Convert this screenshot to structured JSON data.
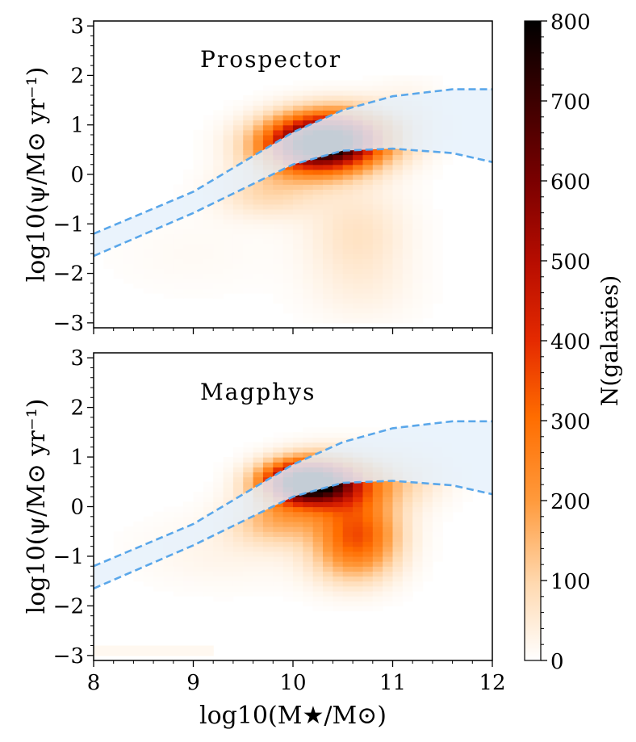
{
  "chart_data": {
    "type": "heatmap",
    "x_axis": {
      "label": "log10(M★/M⊙)",
      "range": [
        8,
        12
      ],
      "ticks": [
        8,
        9,
        10,
        11,
        12
      ],
      "tick_labels": [
        "8",
        "9",
        "10",
        "11",
        "12"
      ]
    },
    "y_axis": {
      "label": "log10(ψ/M⊙ yr⁻¹)",
      "range": [
        -3.1,
        3.1
      ],
      "ticks": [
        -3,
        -2,
        -1,
        0,
        1,
        2,
        3
      ],
      "tick_labels": [
        "−3",
        "−2",
        "−1",
        "0",
        "1",
        "2",
        "3"
      ]
    },
    "colorbar": {
      "label": "N(galaxies)",
      "range": [
        0,
        800
      ],
      "ticks": [
        0,
        100,
        200,
        300,
        400,
        500,
        600,
        700,
        800
      ],
      "tick_labels": [
        "0",
        "100",
        "200",
        "300",
        "400",
        "500",
        "600",
        "700",
        "800"
      ],
      "colormap": "gist_heat_r"
    },
    "panels": [
      {
        "title": "Prospector",
        "density_components": [
          {
            "x": 10.25,
            "y": 0.6,
            "sx": 0.38,
            "sy": 0.38,
            "amp": 780
          },
          {
            "x": 10.55,
            "y": 0.85,
            "sx": 0.35,
            "sy": 0.35,
            "amp": 240
          },
          {
            "x": 9.75,
            "y": -0.35,
            "sx": 0.35,
            "sy": 0.35,
            "amp": 90
          },
          {
            "x": 10.65,
            "y": -1.2,
            "sx": 0.35,
            "sy": 0.7,
            "amp": 70
          },
          {
            "x": 10.7,
            "y": -2.4,
            "sx": 0.4,
            "sy": 0.5,
            "amp": 22
          },
          {
            "x": 9.0,
            "y": -1.6,
            "sx": 0.6,
            "sy": 0.6,
            "amp": 12
          },
          {
            "x": 11.15,
            "y": 1.1,
            "sx": 0.25,
            "sy": 0.5,
            "amp": 40
          }
        ],
        "ms_band": {
          "x": [
            8.0,
            9.0,
            10.0,
            10.5,
            11.0,
            11.6,
            12.0
          ],
          "upper": [
            -1.2,
            -0.35,
            0.85,
            1.3,
            1.58,
            1.72,
            1.72
          ],
          "lower": [
            -1.65,
            -0.78,
            0.2,
            0.48,
            0.52,
            0.43,
            0.25
          ]
        }
      },
      {
        "title": "Magphys",
        "density_components": [
          {
            "x": 10.1,
            "y": 0.5,
            "sx": 0.28,
            "sy": 0.28,
            "amp": 720
          },
          {
            "x": 10.45,
            "y": 0.45,
            "sx": 0.35,
            "sy": 0.38,
            "amp": 360
          },
          {
            "x": 10.65,
            "y": -0.5,
            "sx": 0.28,
            "sy": 0.45,
            "amp": 300
          },
          {
            "x": 9.85,
            "y": -0.25,
            "sx": 0.32,
            "sy": 0.35,
            "amp": 150
          },
          {
            "x": 10.6,
            "y": -1.1,
            "sx": 0.3,
            "sy": 0.4,
            "amp": 110
          },
          {
            "x": 9.3,
            "y": -0.9,
            "sx": 0.6,
            "sy": 0.5,
            "amp": 25
          },
          {
            "x": 11.15,
            "y": 0.6,
            "sx": 0.3,
            "sy": 0.4,
            "amp": 60
          }
        ],
        "floor_row": {
          "y": -2.93,
          "x_min": 8.0,
          "x_max": 9.2,
          "value": 18
        },
        "ms_band": {
          "x": [
            8.0,
            9.0,
            10.0,
            10.5,
            11.0,
            11.6,
            12.0
          ],
          "upper": [
            -1.2,
            -0.35,
            0.85,
            1.3,
            1.58,
            1.72,
            1.72
          ],
          "lower": [
            -1.65,
            -0.78,
            0.2,
            0.48,
            0.52,
            0.43,
            0.25
          ]
        }
      }
    ],
    "band_color": "#5aa7ea",
    "band_fill": "#e6f1fb",
    "grid": false
  }
}
